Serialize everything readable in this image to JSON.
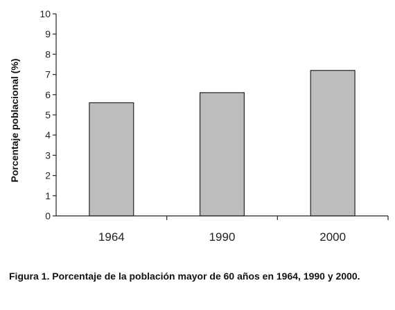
{
  "chart_data": {
    "type": "bar",
    "categories": [
      "1964",
      "1990",
      "2000"
    ],
    "values": [
      5.6,
      6.1,
      7.2
    ],
    "title": "",
    "xlabel": "",
    "ylabel": "Porcentaje poblacional (%)",
    "ylim": [
      0,
      10
    ],
    "yticks": [
      "0",
      "1",
      "2",
      "3",
      "4",
      "5",
      "6",
      "7",
      "8",
      "9",
      "10"
    ],
    "grid": false,
    "legend": "none",
    "bar_color": "#bdbdbd",
    "bar_edge_color": "#222222"
  },
  "caption": "Figura 1. Porcentaje de la población mayor de 60 años en 1964, 1990 y 2000."
}
